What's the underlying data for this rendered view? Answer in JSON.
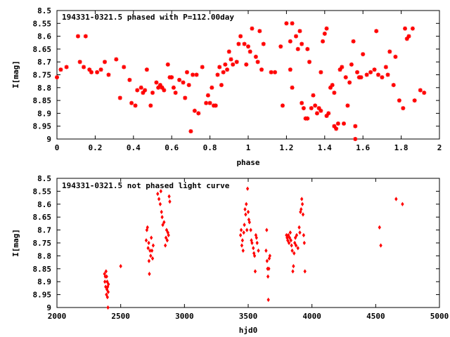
{
  "chart_data": [
    {
      "type": "scatter",
      "title": "194331-0321.5 phased with P=112.00day",
      "xlabel": "phase",
      "ylabel": "I[mag]",
      "xlim": [
        0,
        2
      ],
      "ylim": [
        9,
        8.5
      ],
      "y_inverted": true,
      "grid": false,
      "marker": "asterisk",
      "color": "#ff0000",
      "xticks": [
        "0",
        "0.2",
        "0.4",
        "0.6",
        "0.8",
        "1",
        "1.2",
        "1.4",
        "1.6",
        "1.8",
        "2"
      ],
      "xtick_values": [
        0,
        0.2,
        0.4,
        0.6,
        0.8,
        1.0,
        1.2,
        1.4,
        1.6,
        1.8,
        2.0
      ],
      "yticks": [
        "8.5",
        "8.55",
        "8.6",
        "8.65",
        "8.7",
        "8.75",
        "8.8",
        "8.85",
        "8.9",
        "8.95",
        "9"
      ],
      "ytick_values": [
        8.5,
        8.55,
        8.6,
        8.65,
        8.7,
        8.75,
        8.8,
        8.85,
        8.9,
        8.95,
        9.0
      ],
      "points": [
        [
          0.0,
          8.76
        ],
        [
          0.02,
          8.73
        ],
        [
          0.05,
          8.72
        ],
        [
          0.11,
          8.6
        ],
        [
          0.12,
          8.7
        ],
        [
          0.15,
          8.6
        ],
        [
          0.14,
          8.72
        ],
        [
          0.17,
          8.73
        ],
        [
          0.18,
          8.74
        ],
        [
          0.21,
          8.74
        ],
        [
          0.23,
          8.73
        ],
        [
          0.25,
          8.7
        ],
        [
          0.27,
          8.75
        ],
        [
          0.31,
          8.69
        ],
        [
          0.33,
          8.84
        ],
        [
          0.35,
          8.72
        ],
        [
          0.38,
          8.77
        ],
        [
          0.39,
          8.86
        ],
        [
          0.41,
          8.87
        ],
        [
          0.42,
          8.81
        ],
        [
          0.44,
          8.8
        ],
        [
          0.45,
          8.82
        ],
        [
          0.46,
          8.81
        ],
        [
          0.47,
          8.73
        ],
        [
          0.49,
          8.87
        ],
        [
          0.5,
          8.82
        ],
        [
          0.52,
          8.78
        ],
        [
          0.53,
          8.8
        ],
        [
          0.54,
          8.79
        ],
        [
          0.55,
          8.8
        ],
        [
          0.56,
          8.81
        ],
        [
          0.58,
          8.71
        ],
        [
          0.59,
          8.76
        ],
        [
          0.6,
          8.76
        ],
        [
          0.61,
          8.8
        ],
        [
          0.62,
          8.82
        ],
        [
          0.64,
          8.77
        ],
        [
          0.66,
          8.78
        ],
        [
          0.67,
          8.84
        ],
        [
          0.68,
          8.74
        ],
        [
          0.69,
          8.79
        ],
        [
          0.7,
          8.97
        ],
        [
          0.71,
          8.75
        ],
        [
          0.72,
          8.89
        ],
        [
          0.73,
          8.75
        ],
        [
          0.74,
          8.9
        ],
        [
          0.76,
          8.72
        ],
        [
          0.78,
          8.86
        ],
        [
          0.79,
          8.83
        ],
        [
          0.8,
          8.86
        ],
        [
          0.81,
          8.8
        ],
        [
          0.82,
          8.87
        ],
        [
          0.83,
          8.87
        ],
        [
          0.84,
          8.75
        ],
        [
          0.85,
          8.72
        ],
        [
          0.86,
          8.79
        ],
        [
          0.87,
          8.74
        ],
        [
          0.88,
          8.71
        ],
        [
          0.89,
          8.73
        ],
        [
          0.9,
          8.66
        ],
        [
          0.91,
          8.69
        ],
        [
          0.92,
          8.71
        ],
        [
          0.94,
          8.7
        ],
        [
          0.95,
          8.63
        ],
        [
          0.96,
          8.6
        ],
        [
          0.98,
          8.63
        ],
        [
          0.99,
          8.71
        ],
        [
          1.0,
          8.64
        ],
        [
          1.01,
          8.66
        ],
        [
          1.02,
          8.57
        ],
        [
          1.04,
          8.68
        ],
        [
          1.05,
          8.7
        ],
        [
          1.06,
          8.58
        ],
        [
          1.07,
          8.73
        ],
        [
          1.08,
          8.63
        ],
        [
          1.12,
          8.74
        ],
        [
          1.14,
          8.74
        ],
        [
          1.17,
          8.64
        ],
        [
          1.18,
          8.87
        ],
        [
          1.2,
          8.55
        ],
        [
          1.22,
          8.62
        ],
        [
          1.23,
          8.55
        ],
        [
          1.22,
          8.73
        ],
        [
          1.23,
          8.8
        ],
        [
          1.25,
          8.6
        ],
        [
          1.26,
          8.65
        ],
        [
          1.27,
          8.58
        ],
        [
          1.28,
          8.63
        ],
        [
          1.28,
          8.86
        ],
        [
          1.29,
          8.88
        ],
        [
          1.3,
          8.92
        ],
        [
          1.31,
          8.92
        ],
        [
          1.31,
          8.65
        ],
        [
          1.32,
          8.7
        ],
        [
          1.33,
          8.88
        ],
        [
          1.34,
          8.83
        ],
        [
          1.35,
          8.87
        ],
        [
          1.36,
          8.9
        ],
        [
          1.37,
          8.88
        ],
        [
          1.38,
          8.74
        ],
        [
          1.38,
          8.89
        ],
        [
          1.39,
          8.62
        ],
        [
          1.4,
          8.59
        ],
        [
          1.41,
          8.57
        ],
        [
          1.41,
          8.91
        ],
        [
          1.42,
          8.9
        ],
        [
          1.43,
          8.8
        ],
        [
          1.44,
          8.79
        ],
        [
          1.45,
          8.95
        ],
        [
          1.45,
          8.82
        ],
        [
          1.46,
          8.96
        ],
        [
          1.47,
          8.94
        ],
        [
          1.48,
          8.73
        ],
        [
          1.49,
          8.72
        ],
        [
          1.5,
          8.94
        ],
        [
          1.51,
          8.76
        ],
        [
          1.52,
          8.87
        ],
        [
          1.53,
          8.78
        ],
        [
          1.54,
          8.71
        ],
        [
          1.55,
          8.62
        ],
        [
          1.56,
          8.95
        ],
        [
          1.56,
          9.0
        ],
        [
          1.57,
          8.74
        ],
        [
          1.58,
          8.76
        ],
        [
          1.59,
          8.76
        ],
        [
          1.6,
          8.67
        ],
        [
          1.62,
          8.75
        ],
        [
          1.64,
          8.74
        ],
        [
          1.66,
          8.73
        ],
        [
          1.67,
          8.58
        ],
        [
          1.68,
          8.75
        ],
        [
          1.7,
          8.76
        ],
        [
          1.72,
          8.72
        ],
        [
          1.73,
          8.75
        ],
        [
          1.74,
          8.66
        ],
        [
          1.76,
          8.79
        ],
        [
          1.77,
          8.68
        ],
        [
          1.79,
          8.85
        ],
        [
          1.81,
          8.88
        ],
        [
          1.82,
          8.57
        ],
        [
          1.83,
          8.61
        ],
        [
          1.84,
          8.6
        ],
        [
          1.86,
          8.57
        ],
        [
          1.87,
          8.85
        ],
        [
          1.9,
          8.81
        ],
        [
          1.92,
          8.82
        ]
      ]
    },
    {
      "type": "scatter",
      "title": "194331-0321.5 not phased light curve",
      "xlabel": "hjd0",
      "ylabel": "I[mag]",
      "xlim": [
        2000,
        5000
      ],
      "ylim": [
        9,
        8.5
      ],
      "y_inverted": true,
      "grid": false,
      "marker": "diamond",
      "color": "#ff0000",
      "xticks": [
        "2000",
        "2500",
        "3000",
        "3500",
        "4000",
        "4500",
        "5000"
      ],
      "xtick_values": [
        2000,
        2500,
        3000,
        3500,
        4000,
        4500,
        5000
      ],
      "yticks": [
        "8.5",
        "8.55",
        "8.6",
        "8.65",
        "8.7",
        "8.75",
        "8.8",
        "8.85",
        "8.9",
        "8.95",
        "9"
      ],
      "ytick_values": [
        8.5,
        8.55,
        8.6,
        8.65,
        8.7,
        8.75,
        8.8,
        8.85,
        8.9,
        8.95,
        9.0
      ],
      "points": [
        [
          2373,
          8.87
        ],
        [
          2376,
          8.9
        ],
        [
          2379,
          8.88
        ],
        [
          2382,
          8.92
        ],
        [
          2385,
          8.86
        ],
        [
          2388,
          8.95
        ],
        [
          2390,
          8.88
        ],
        [
          2392,
          8.93
        ],
        [
          2394,
          8.9
        ],
        [
          2396,
          8.96
        ],
        [
          2398,
          8.92
        ],
        [
          2400,
          9.0
        ],
        [
          2402,
          8.94
        ],
        [
          2404,
          8.91
        ],
        [
          2500,
          8.84
        ],
        [
          2700,
          8.74
        ],
        [
          2705,
          8.7
        ],
        [
          2710,
          8.69
        ],
        [
          2715,
          8.77
        ],
        [
          2720,
          8.75
        ],
        [
          2722,
          8.82
        ],
        [
          2725,
          8.87
        ],
        [
          2730,
          8.78
        ],
        [
          2735,
          8.8
        ],
        [
          2740,
          8.73
        ],
        [
          2745,
          8.78
        ],
        [
          2750,
          8.81
        ],
        [
          2755,
          8.76
        ],
        [
          2790,
          8.56
        ],
        [
          2800,
          8.58
        ],
        [
          2810,
          8.6
        ],
        [
          2815,
          8.55
        ],
        [
          2820,
          8.63
        ],
        [
          2825,
          8.65
        ],
        [
          2830,
          8.68
        ],
        [
          2840,
          8.67
        ],
        [
          2850,
          8.76
        ],
        [
          2855,
          8.73
        ],
        [
          2860,
          8.7
        ],
        [
          2865,
          8.74
        ],
        [
          2870,
          8.71
        ],
        [
          2875,
          8.72
        ],
        [
          2880,
          8.57
        ],
        [
          2885,
          8.59
        ],
        [
          3440,
          8.72
        ],
        [
          3445,
          8.7
        ],
        [
          3450,
          8.76
        ],
        [
          3455,
          8.74
        ],
        [
          3460,
          8.78
        ],
        [
          3465,
          8.71
        ],
        [
          3470,
          8.68
        ],
        [
          3475,
          8.62
        ],
        [
          3480,
          8.64
        ],
        [
          3485,
          8.6
        ],
        [
          3490,
          8.7
        ],
        [
          3495,
          8.54
        ],
        [
          3500,
          8.63
        ],
        [
          3505,
          8.66
        ],
        [
          3510,
          8.67
        ],
        [
          3520,
          8.7
        ],
        [
          3525,
          8.74
        ],
        [
          3530,
          8.75
        ],
        [
          3540,
          8.77
        ],
        [
          3545,
          8.79
        ],
        [
          3550,
          8.8
        ],
        [
          3555,
          8.86
        ],
        [
          3560,
          8.72
        ],
        [
          3565,
          8.73
        ],
        [
          3570,
          8.75
        ],
        [
          3580,
          8.78
        ],
        [
          3640,
          8.78
        ],
        [
          3645,
          8.7
        ],
        [
          3648,
          8.82
        ],
        [
          3652,
          8.85
        ],
        [
          3655,
          8.88
        ],
        [
          3658,
          8.97
        ],
        [
          3662,
          8.85
        ],
        [
          3665,
          8.81
        ],
        [
          3670,
          8.8
        ],
        [
          3800,
          8.72
        ],
        [
          3805,
          8.73
        ],
        [
          3810,
          8.74
        ],
        [
          3815,
          8.72
        ],
        [
          3820,
          8.75
        ],
        [
          3825,
          8.73
        ],
        [
          3830,
          8.71
        ],
        [
          3835,
          8.74
        ],
        [
          3840,
          8.76
        ],
        [
          3845,
          8.78
        ],
        [
          3850,
          8.86
        ],
        [
          3855,
          8.84
        ],
        [
          3860,
          8.79
        ],
        [
          3865,
          8.75
        ],
        [
          3870,
          8.73
        ],
        [
          3875,
          8.76
        ],
        [
          3880,
          8.72
        ],
        [
          3890,
          8.77
        ],
        [
          3900,
          8.69
        ],
        [
          3905,
          8.71
        ],
        [
          3910,
          8.63
        ],
        [
          3915,
          8.62
        ],
        [
          3920,
          8.58
        ],
        [
          3925,
          8.6
        ],
        [
          3930,
          8.64
        ],
        [
          3935,
          8.72
        ],
        [
          3940,
          8.75
        ],
        [
          3945,
          8.86
        ],
        [
          4530,
          8.69
        ],
        [
          4540,
          8.76
        ],
        [
          4660,
          8.58
        ],
        [
          4710,
          8.6
        ]
      ]
    }
  ]
}
